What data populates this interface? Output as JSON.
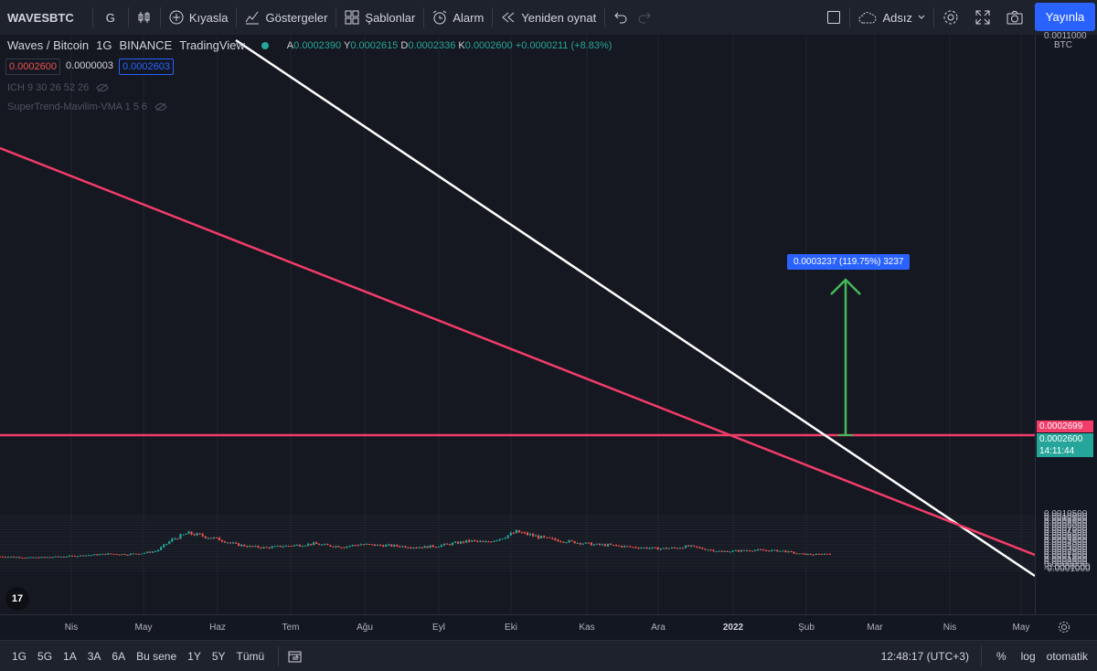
{
  "toolbar": {
    "symbol": "WAVESBTC",
    "interval": "G",
    "compare": "Kıyasla",
    "indicators": "Göstergeler",
    "templates": "Şablonlar",
    "alert": "Alarm",
    "replay": "Yeniden oynat",
    "layout_name": "Adsız",
    "publish": "Yayınla"
  },
  "legend": {
    "title": "Waves / Bitcoin",
    "interval": "1G",
    "exchange": "BINANCE",
    "source": "TradingView",
    "open_label": "A",
    "open": "0.0002390",
    "high_label": "Y",
    "high": "0.0002615",
    "low_label": "D",
    "low": "0.0002336",
    "close_label": "K",
    "close": "0.0002600",
    "change": "+0.0000211 (+8.83%)",
    "bid": "0.0002600",
    "spread": "0.0000003",
    "ask": "0.0002603",
    "indicator1": "ICH 9 30 26 52 26",
    "indicator2": "SuperTrend-Mavilim-VMA 1 5 6"
  },
  "yaxis": {
    "currency": "BTC",
    "ticks": [
      "0.0010500",
      "0.0010000",
      "0.0009500",
      "0.0009000",
      "0.0008500",
      "0.0008000",
      "0.0007500",
      "0.0007000",
      "0.0006500",
      "0.0006000",
      "0.0005500",
      "0.0005000",
      "0.0004500",
      "0.0004000",
      "0.0003500",
      "0.0003000",
      "0.0002500",
      "0.0002000",
      "0.0001500",
      "0.0001000",
      "0.0000500",
      "0.0000000",
      "-0.0000500",
      "-0.0001000"
    ],
    "top_partial": "0.0011000",
    "tag_line": "0.0002699",
    "tag_price": "0.0002600",
    "tag_timer": "14:11:44"
  },
  "xaxis": {
    "labels": [
      "Nis",
      "May",
      "Haz",
      "Tem",
      "Ağu",
      "Eyl",
      "Eki",
      "Kas",
      "Ara",
      "2022",
      "Şub",
      "Mar",
      "Nis",
      "May"
    ]
  },
  "measure_label": "0.0003237 (119.75%) 3237",
  "bottom": {
    "ranges": [
      "1G",
      "5G",
      "1A",
      "3A",
      "6A",
      "Bu sene",
      "1Y",
      "5Y",
      "Tümü"
    ],
    "time": "12:48:17 (UTC+3)",
    "percent": "%",
    "log": "log",
    "auto": "otomatik"
  },
  "colors": {
    "up": "#26a69a",
    "down": "#ef5350",
    "trend_white": "#ffffff",
    "trend_red": "#f23c6a",
    "accent": "#2962ff"
  },
  "chart_data": {
    "type": "candlestick",
    "symbol": "WAVESBTC",
    "closes": [
      0.000195,
      0.000185,
      0.00017,
      0.00018,
      0.000195,
      0.00021,
      0.00023,
      0.00025,
      0.00024,
      0.00026,
      0.00031,
      0.00055,
      0.00068,
      0.00062,
      0.00055,
      0.00045,
      0.0004,
      0.00038,
      0.00041,
      0.00043,
      0.00046,
      0.00042,
      0.0004,
      0.00045,
      0.00043,
      0.00042,
      0.0004,
      0.00039,
      0.00042,
      0.00047,
      0.00052,
      0.00049,
      0.00058,
      0.00071,
      0.00063,
      0.00056,
      0.00052,
      0.00048,
      0.00044,
      0.00043,
      0.0004,
      0.00038,
      0.00036,
      0.00037,
      0.00041,
      0.00035,
      0.0003,
      0.00031,
      0.00033,
      0.00032,
      0.00031,
      0.00025,
      0.000235,
      0.00026
    ],
    "horizontal_line": 0.0002699,
    "last_price": 0.00026,
    "measure_target": 0.0006,
    "ylim": [
      -0.0001,
      0.0011
    ]
  }
}
